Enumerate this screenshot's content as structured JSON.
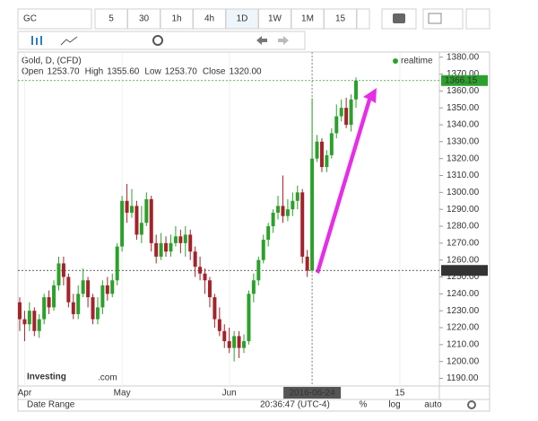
{
  "toolbar": {
    "symbol": "GC",
    "intervals": [
      "5",
      "30",
      "1h",
      "4h",
      "1D",
      "1W",
      "1M",
      "15"
    ],
    "active_interval": "1D"
  },
  "chart_data": {
    "type": "candlestick",
    "title": "Gold, D, (CFD)",
    "status": "realtime",
    "readout": {
      "labels": [
        "Open",
        "High",
        "Low",
        "Close"
      ],
      "values": [
        "1253.70",
        "1355.60",
        "1253.70",
        "1320.00"
      ]
    },
    "up_color": "#2ca02c",
    "down_color": "#a3232b",
    "open": [
      1235,
      1225,
      1222,
      1230,
      1218,
      1225,
      1238,
      1232,
      1245,
      1258,
      1250,
      1235,
      1228,
      1240,
      1248,
      1238,
      1225,
      1232,
      1245,
      1240,
      1248,
      1268,
      1295,
      1288,
      1292,
      1275,
      1282,
      1296,
      1270,
      1262,
      1270,
      1265,
      1270,
      1274,
      1270,
      1275,
      1265,
      1256,
      1252,
      1248,
      1238,
      1225,
      1218,
      1212,
      1208,
      1215,
      1208,
      1212,
      1240,
      1248,
      1260,
      1272,
      1280,
      1288,
      1292,
      1286,
      1290,
      1295,
      1300,
      1262,
      1253.7,
      1320,
      1330,
      1315,
      1322,
      1335,
      1345,
      1350,
      1340,
      1355
    ],
    "high": [
      1238,
      1230,
      1235,
      1232,
      1228,
      1240,
      1242,
      1248,
      1262,
      1262,
      1252,
      1240,
      1245,
      1255,
      1250,
      1240,
      1238,
      1248,
      1250,
      1252,
      1270,
      1298,
      1305,
      1302,
      1295,
      1292,
      1300,
      1298,
      1275,
      1276,
      1274,
      1275,
      1280,
      1278,
      1280,
      1278,
      1268,
      1262,
      1255,
      1250,
      1240,
      1232,
      1222,
      1220,
      1218,
      1218,
      1216,
      1242,
      1252,
      1262,
      1275,
      1282,
      1290,
      1298,
      1310,
      1296,
      1300,
      1304,
      1302,
      1266,
      1355.6,
      1334,
      1332,
      1325,
      1338,
      1352,
      1355,
      1356,
      1358,
      1368
    ],
    "low": [
      1218,
      1212,
      1218,
      1215,
      1214,
      1222,
      1228,
      1230,
      1242,
      1245,
      1232,
      1225,
      1225,
      1238,
      1232,
      1222,
      1222,
      1228,
      1236,
      1238,
      1245,
      1265,
      1282,
      1285,
      1272,
      1270,
      1280,
      1265,
      1258,
      1260,
      1262,
      1262,
      1268,
      1264,
      1262,
      1260,
      1250,
      1248,
      1240,
      1232,
      1220,
      1215,
      1208,
      1205,
      1200,
      1202,
      1205,
      1210,
      1235,
      1245,
      1258,
      1268,
      1276,
      1284,
      1282,
      1283,
      1286,
      1290,
      1258,
      1250,
      1253.7,
      1318,
      1312,
      1312,
      1320,
      1332,
      1342,
      1338,
      1336,
      1350
    ],
    "close": [
      1225,
      1222,
      1230,
      1218,
      1225,
      1238,
      1232,
      1245,
      1258,
      1250,
      1235,
      1228,
      1240,
      1248,
      1238,
      1225,
      1232,
      1245,
      1240,
      1248,
      1268,
      1295,
      1288,
      1292,
      1275,
      1282,
      1296,
      1270,
      1262,
      1270,
      1265,
      1270,
      1274,
      1270,
      1275,
      1265,
      1256,
      1252,
      1248,
      1238,
      1225,
      1218,
      1212,
      1208,
      1215,
      1208,
      1212,
      1240,
      1248,
      1260,
      1272,
      1280,
      1288,
      1292,
      1286,
      1290,
      1295,
      1300,
      1262,
      1253.7,
      1320,
      1330,
      1315,
      1322,
      1335,
      1345,
      1350,
      1340,
      1355,
      1366.15
    ],
    "xlim": [
      0,
      86
    ],
    "xticks": [
      {
        "value": 1,
        "label": "Apr"
      },
      {
        "value": 21,
        "label": "May"
      },
      {
        "value": 43,
        "label": "Jun"
      },
      {
        "value": 60,
        "label": "2016-06-24"
      },
      {
        "value": 78,
        "label": "15"
      }
    ],
    "crosshair_index": 60,
    "ylim": [
      1185.5,
      1383
    ],
    "yticks": [
      {
        "value": 1190,
        "label": "1190.00"
      },
      {
        "value": 1200,
        "label": "1200.00"
      },
      {
        "value": 1210,
        "label": "1210.00"
      },
      {
        "value": 1220,
        "label": "1220.00"
      },
      {
        "value": 1230,
        "label": "1230.00"
      },
      {
        "value": 1240,
        "label": "1240.00"
      },
      {
        "value": 1250,
        "label": "1250.00"
      },
      {
        "value": 1260,
        "label": "1260.00"
      },
      {
        "value": 1270,
        "label": "1270.00"
      },
      {
        "value": 1280,
        "label": "1280.00"
      },
      {
        "value": 1290,
        "label": "1290.00"
      },
      {
        "value": 1300,
        "label": "1300.00"
      },
      {
        "value": 1310,
        "label": "1310.00"
      },
      {
        "value": 1320,
        "label": "1320.00"
      },
      {
        "value": 1330,
        "label": "1330.00"
      },
      {
        "value": 1340,
        "label": "1340.00"
      },
      {
        "value": 1350,
        "label": "1350.00"
      },
      {
        "value": 1360,
        "label": "1360.00"
      },
      {
        "value": 1370,
        "label": "1370.00"
      },
      {
        "value": 1380,
        "label": "1380.00"
      }
    ],
    "price_lines": [
      {
        "value": 1366.15,
        "color": "#2ca02c"
      },
      {
        "value": 1253.85,
        "color": "#333333"
      }
    ],
    "logo": {
      "name": "Investing",
      "suffix": ".com"
    }
  },
  "footer": {
    "date_range": "Date Range",
    "time": "20:36:47 (UTC-4)",
    "options": [
      "%",
      "log",
      "auto"
    ]
  }
}
